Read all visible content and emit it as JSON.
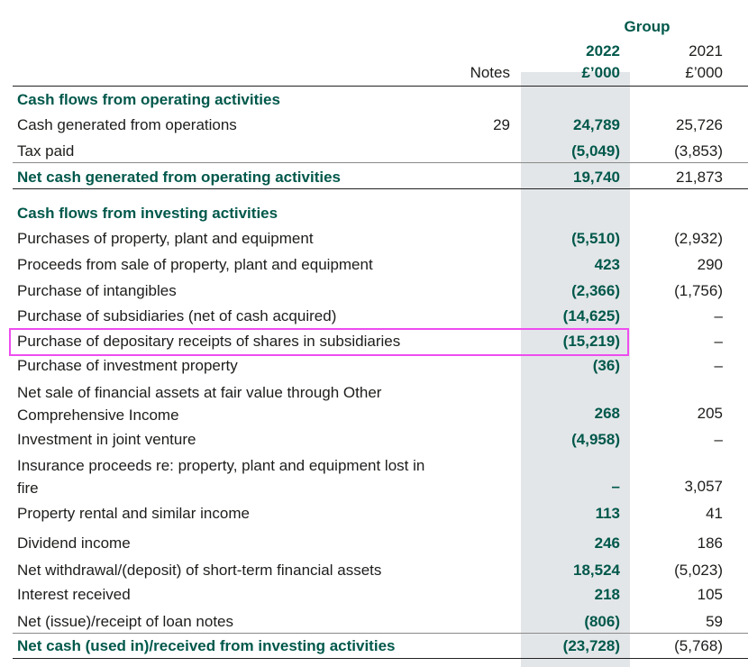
{
  "header": {
    "group": "Group",
    "notes": "Notes",
    "year_2022": "2022",
    "unit_2022": "£’000",
    "year_2021": "2021",
    "unit_2021": "£’000"
  },
  "rows": [
    {
      "label": "Cash flows from operating activities",
      "kind": "section"
    },
    {
      "label": "Cash generated from operations",
      "note": "29",
      "v2022": "24,789",
      "v2021": "25,726"
    },
    {
      "label": "Tax paid",
      "v2022": "(5,049)",
      "v2021": "(3,853)"
    },
    {
      "label": "Net cash generated from operating activities",
      "v2022": "19,740",
      "v2021": "21,873",
      "kind": "total"
    },
    {
      "label": "Cash flows from investing activities",
      "kind": "section"
    },
    {
      "label": "Purchases of property, plant and equipment",
      "v2022": "(5,510)",
      "v2021": "(2,932)"
    },
    {
      "label": "Proceeds from sale of property, plant and equipment",
      "v2022": "423",
      "v2021": "290"
    },
    {
      "label": "Purchase of intangibles",
      "v2022": "(2,366)",
      "v2021": "(1,756)"
    },
    {
      "label": "Purchase of subsidiaries (net of cash acquired)",
      "v2022": "(14,625)",
      "v2021": "–"
    },
    {
      "label": "Purchase of depositary receipts of shares in subsidiaries",
      "v2022": "(15,219)",
      "v2021": "–",
      "highlighted": true
    },
    {
      "label": "Purchase of investment property",
      "v2022": "(36)",
      "v2021": "–"
    },
    {
      "label": "Net sale of financial assets at fair value through Other Comprehensive Income",
      "v2022": "268",
      "v2021": "205"
    },
    {
      "label": "Investment in joint venture",
      "v2022": "(4,958)",
      "v2021": "–"
    },
    {
      "label": "Insurance proceeds re: property, plant and equipment lost in fire",
      "v2022": "–",
      "v2021": "3,057"
    },
    {
      "label": "Property rental and similar income",
      "v2022": "113",
      "v2021": "41"
    },
    {
      "label": "Dividend income",
      "v2022": "246",
      "v2021": "186"
    },
    {
      "label": "Net withdrawal/(deposit) of short-term financial assets",
      "v2022": "18,524",
      "v2021": "(5,023)"
    },
    {
      "label": "Interest received",
      "v2022": "218",
      "v2021": "105"
    },
    {
      "label": "Net (issue)/receipt of loan notes",
      "v2022": "(806)",
      "v2021": "59"
    },
    {
      "label": "Net cash (used in)/received from investing activities",
      "v2022": "(23,728)",
      "v2021": "(5,768)",
      "kind": "total"
    }
  ],
  "colors": {
    "accent": "#00584b",
    "shade": "#e3e6e8",
    "highlight": "#ee4cef"
  }
}
